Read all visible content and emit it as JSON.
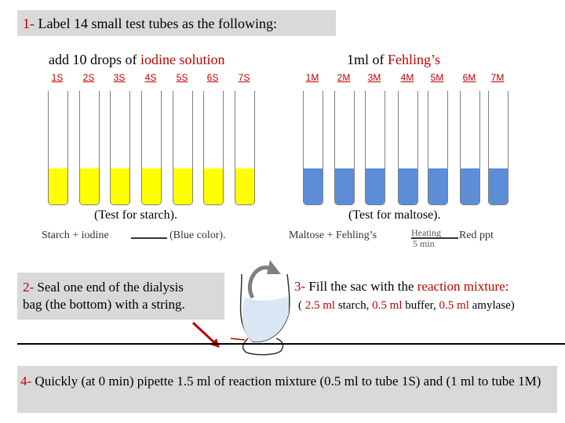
{
  "step1": {
    "num": "1-",
    "text": " Label 14 small test tubes as the following:"
  },
  "iodine": {
    "prefix": "add 10 drops of ",
    "highlight": "iodine solution"
  },
  "fehling": {
    "prefix": "1ml of ",
    "highlight": "Fehling’s"
  },
  "s_tubes": [
    "1S",
    "2S",
    "3S",
    "4S",
    "5S",
    "6S",
    "7S"
  ],
  "m_tubes": [
    "1M",
    "2M",
    "3M",
    "4M",
    "5M",
    "6M",
    "7M"
  ],
  "colors": {
    "yellow_fill": "#ffff00",
    "blue_fill": "#5b8ed6",
    "accent_red": "#c00000",
    "box_gray": "#d9d9d9"
  },
  "starch_test": {
    "title": "(Test for starch).",
    "reactants": "Starch + iodine",
    "result": "(Blue color)."
  },
  "maltose_test": {
    "title": "(Test for maltose).",
    "reactants": "Maltose + Fehling’s",
    "condition_top": "Heating",
    "condition_bottom": "5 min",
    "result": "Red ppt"
  },
  "step2": {
    "num": "2-",
    "line1": " Seal one end of the dialysis",
    "line2": "bag (the bottom) with a string."
  },
  "step3": {
    "num": "3-",
    "text": " Fill the sac with the ",
    "highlight": "reaction mixture:",
    "open": "( ",
    "v1": "2.5 ml",
    "t1": " starch, ",
    "v2": "0.5 ml",
    "t2": " buffer, ",
    "v3": "0.5 ml",
    "t3": " amylase)"
  },
  "step4": {
    "num": "4-",
    "text": " Quickly (at 0 min) pipette 1.5 ml of reaction mixture (0.5 ml to tube 1S) and (1 ml to tube 1M)"
  },
  "icons": [
    "dialysis-bag-icon",
    "curved-arrow-icon",
    "pointer-arrow-icon"
  ]
}
